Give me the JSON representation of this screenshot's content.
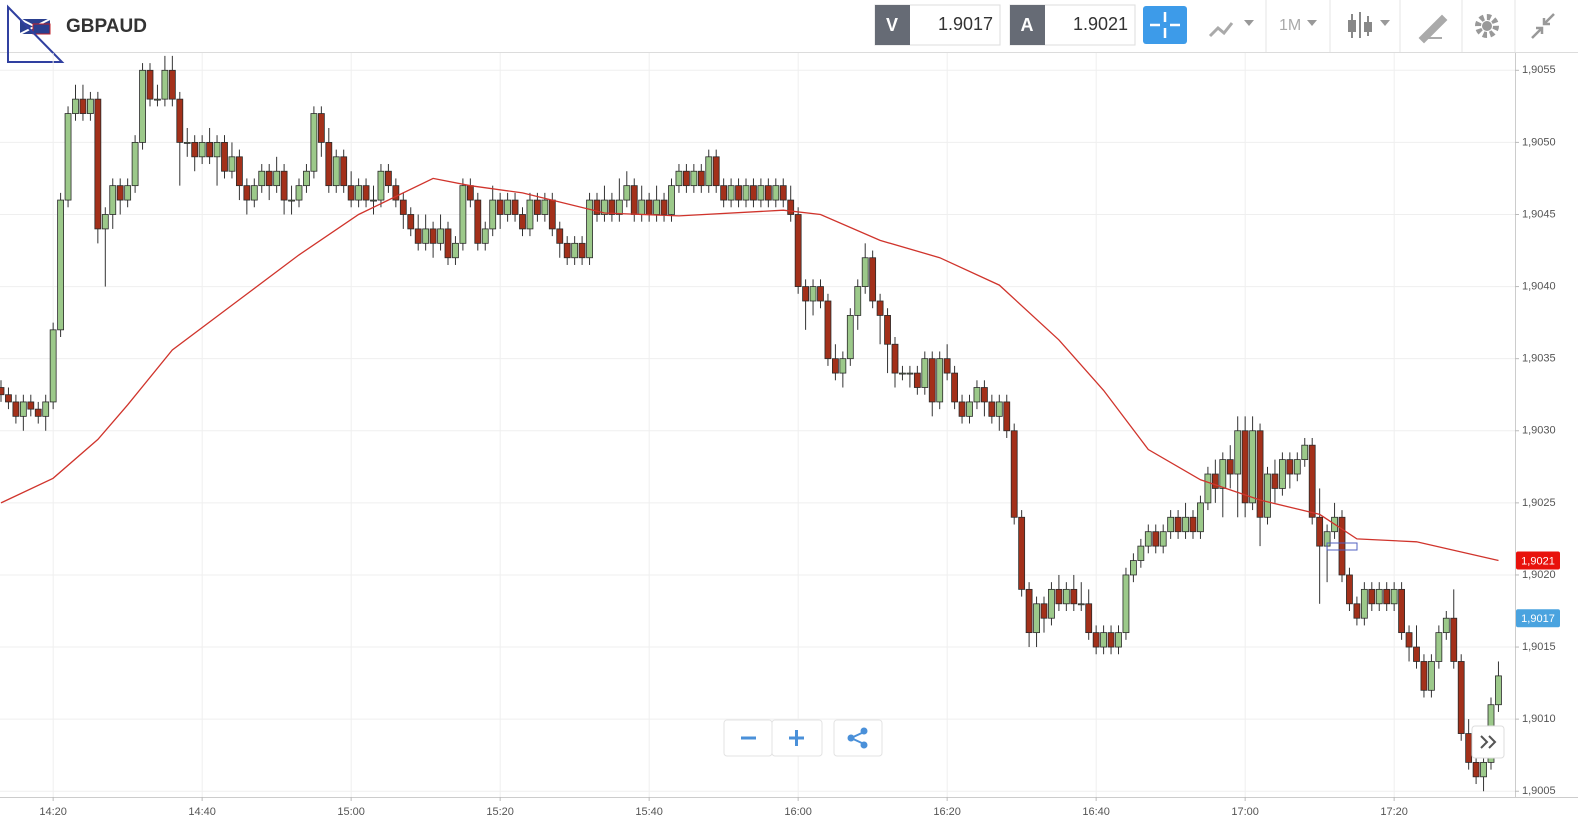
{
  "header": {
    "symbol": "GBPAUD",
    "bid_label": "V",
    "bid": "1.9017",
    "ask_label": "A",
    "ask": "1.9021",
    "timeframe": "1M"
  },
  "chart_data": {
    "type": "candlestick",
    "up_color": "#9cc98a",
    "down_color": "#a3301a",
    "categories": [
      "14:13",
      "14:14",
      "14:15",
      "14:16",
      "14:17",
      "14:18",
      "14:19",
      "14:20",
      "14:21",
      "14:22",
      "14:23",
      "14:24",
      "14:25",
      "14:26",
      "14:27",
      "14:28",
      "14:29",
      "14:30",
      "14:31",
      "14:32",
      "14:33",
      "14:34",
      "14:35",
      "14:36",
      "14:37",
      "14:38",
      "14:39",
      "14:40",
      "14:41",
      "14:42",
      "14:43",
      "14:44",
      "14:45",
      "14:46",
      "14:47",
      "14:48",
      "14:49",
      "14:50",
      "14:51",
      "14:52",
      "14:53",
      "14:54",
      "14:55",
      "14:56",
      "14:57",
      "14:58",
      "14:59",
      "15:00",
      "15:01",
      "15:02",
      "15:03",
      "15:04",
      "15:05",
      "15:06",
      "15:07",
      "15:08",
      "15:09",
      "15:10",
      "15:11",
      "15:12",
      "15:13",
      "15:14",
      "15:15",
      "15:16",
      "15:17",
      "15:18",
      "15:19",
      "15:20",
      "15:21",
      "15:22",
      "15:23",
      "15:24",
      "15:25",
      "15:26",
      "15:27",
      "15:28",
      "15:29",
      "15:30",
      "15:31",
      "15:32",
      "15:33",
      "15:34",
      "15:35",
      "15:36",
      "15:37",
      "15:38",
      "15:39",
      "15:40",
      "15:41",
      "15:42",
      "15:43",
      "15:44",
      "15:45",
      "15:46",
      "15:47",
      "15:48",
      "15:49",
      "15:50",
      "15:51",
      "15:52",
      "15:53",
      "15:54",
      "15:55",
      "15:56",
      "15:57",
      "15:58",
      "15:59",
      "16:00",
      "16:01",
      "16:02",
      "16:03",
      "16:04",
      "16:05",
      "16:06",
      "16:07",
      "16:08",
      "16:09",
      "16:10",
      "16:11",
      "16:12",
      "16:13",
      "16:14",
      "16:15",
      "16:16",
      "16:17",
      "16:18",
      "16:19",
      "16:20",
      "16:21",
      "16:22",
      "16:23",
      "16:24",
      "16:25",
      "16:26",
      "16:27",
      "16:28",
      "16:29",
      "16:30",
      "16:31",
      "16:32",
      "16:33",
      "16:34",
      "16:35",
      "16:36",
      "16:37",
      "16:38",
      "16:39",
      "16:40",
      "16:41",
      "16:42",
      "16:43",
      "16:44",
      "16:45",
      "16:46",
      "16:47",
      "16:48",
      "16:49",
      "16:50",
      "16:51",
      "16:52",
      "16:53",
      "16:54",
      "16:55",
      "16:56",
      "16:57",
      "16:58",
      "16:59",
      "17:00",
      "17:01",
      "17:02",
      "17:03",
      "17:04",
      "17:05",
      "17:06",
      "17:07",
      "17:08",
      "17:09",
      "17:10",
      "17:11",
      "17:12",
      "17:13",
      "17:14",
      "17:15",
      "17:16",
      "17:17",
      "17:18",
      "17:19",
      "17:20",
      "17:21",
      "17:22",
      "17:23",
      "17:24",
      "17:25",
      "17:26",
      "17:27",
      "17:28",
      "17:29",
      "17:30",
      "17:31",
      "17:32",
      "17:33",
      "17:34"
    ],
    "open": [
      1.9033,
      1.90325,
      1.9032,
      1.9031,
      1.9032,
      1.90315,
      1.9031,
      1.9032,
      1.9037,
      1.9046,
      1.9052,
      1.9053,
      1.9052,
      1.9053,
      1.9044,
      1.9045,
      1.9047,
      1.9046,
      1.9047,
      1.905,
      1.9055,
      1.9053,
      1.9053,
      1.9055,
      1.9053,
      1.905,
      1.905,
      1.9049,
      1.905,
      1.9049,
      1.905,
      1.9048,
      1.9049,
      1.9047,
      1.9046,
      1.9047,
      1.9048,
      1.9047,
      1.9048,
      1.9046,
      1.9046,
      1.9047,
      1.9048,
      1.9052,
      1.905,
      1.9047,
      1.9049,
      1.9047,
      1.9046,
      1.9047,
      1.9046,
      1.9046,
      1.9048,
      1.9047,
      1.9046,
      1.9045,
      1.9044,
      1.9043,
      1.9044,
      1.9043,
      1.9044,
      1.9042,
      1.9043,
      1.9047,
      1.9046,
      1.9043,
      1.9044,
      1.9046,
      1.9045,
      1.9046,
      1.9045,
      1.9044,
      1.9046,
      1.9045,
      1.9046,
      1.9044,
      1.9043,
      1.9042,
      1.9043,
      1.9042,
      1.9046,
      1.9045,
      1.9046,
      1.9045,
      1.9046,
      1.9047,
      1.9045,
      1.9046,
      1.9045,
      1.9046,
      1.9045,
      1.9047,
      1.9048,
      1.9047,
      1.9048,
      1.9047,
      1.9049,
      1.9047,
      1.9046,
      1.9047,
      1.9046,
      1.9047,
      1.9046,
      1.9047,
      1.9046,
      1.9047,
      1.9046,
      1.9045,
      1.904,
      1.9039,
      1.904,
      1.9039,
      1.9035,
      1.9034,
      1.9035,
      1.9038,
      1.904,
      1.9042,
      1.9039,
      1.9038,
      1.9036,
      1.9034,
      1.9034,
      1.9034,
      1.9033,
      1.9035,
      1.9032,
      1.9035,
      1.9034,
      1.9032,
      1.9031,
      1.9032,
      1.9033,
      1.9032,
      1.9031,
      1.9032,
      1.903,
      1.9024,
      1.9019,
      1.9016,
      1.9018,
      1.9017,
      1.9019,
      1.9018,
      1.9019,
      1.9018,
      1.9018,
      1.9016,
      1.9015,
      1.9016,
      1.9015,
      1.9016,
      1.902,
      1.9021,
      1.9022,
      1.9023,
      1.9022,
      1.9023,
      1.9024,
      1.9023,
      1.9024,
      1.9023,
      1.9025,
      1.9027,
      1.9026,
      1.9028,
      1.9027,
      1.903,
      1.9025,
      1.903,
      1.9024,
      1.9027,
      1.9026,
      1.9028,
      1.9027,
      1.9028,
      1.9029,
      1.9024,
      1.9022,
      1.9023,
      1.9024,
      1.902,
      1.9018,
      1.9017,
      1.9019,
      1.9018,
      1.9019,
      1.9018,
      1.9019,
      1.9016,
      1.9015,
      1.9014,
      1.9012,
      1.9014,
      1.9016,
      1.9017,
      1.9014,
      1.9009,
      1.9007,
      1.9006,
      1.9007,
      1.9011
    ],
    "high": [
      1.90335,
      1.9033,
      1.90325,
      1.90325,
      1.90325,
      1.9032,
      1.90325,
      1.90375,
      1.90465,
      1.90525,
      1.9054,
      1.9054,
      1.90535,
      1.90535,
      1.90455,
      1.90475,
      1.90475,
      1.90475,
      1.90505,
      1.90555,
      1.90555,
      1.9054,
      1.9056,
      1.9056,
      1.90535,
      1.9051,
      1.90505,
      1.90505,
      1.9051,
      1.90505,
      1.90505,
      1.905,
      1.90495,
      1.90475,
      1.90475,
      1.90485,
      1.90485,
      1.9049,
      1.90485,
      1.9047,
      1.90475,
      1.90485,
      1.90525,
      1.90525,
      1.9051,
      1.90495,
      1.90495,
      1.9048,
      1.90475,
      1.90475,
      1.9047,
      1.90485,
      1.90485,
      1.90475,
      1.90465,
      1.90455,
      1.9045,
      1.9045,
      1.90445,
      1.9045,
      1.90445,
      1.90435,
      1.90475,
      1.90475,
      1.90465,
      1.90445,
      1.9047,
      1.90465,
      1.90465,
      1.90465,
      1.90455,
      1.90465,
      1.90465,
      1.90465,
      1.90465,
      1.90445,
      1.90435,
      1.90435,
      1.90435,
      1.90465,
      1.90465,
      1.9047,
      1.90465,
      1.90475,
      1.9048,
      1.90475,
      1.9047,
      1.90465,
      1.9047,
      1.90465,
      1.90475,
      1.90485,
      1.90485,
      1.90485,
      1.90485,
      1.90495,
      1.90495,
      1.90475,
      1.90475,
      1.90475,
      1.90475,
      1.90475,
      1.90475,
      1.90475,
      1.90475,
      1.90475,
      1.9047,
      1.90455,
      1.90405,
      1.90405,
      1.90405,
      1.90395,
      1.9036,
      1.90355,
      1.90385,
      1.90405,
      1.9043,
      1.90425,
      1.90395,
      1.90385,
      1.90365,
      1.90345,
      1.90345,
      1.90345,
      1.90355,
      1.90355,
      1.90355,
      1.9036,
      1.90345,
      1.90325,
      1.90325,
      1.90335,
      1.90335,
      1.90325,
      1.90325,
      1.90325,
      1.90305,
      1.90245,
      1.90195,
      1.90185,
      1.90185,
      1.90195,
      1.902,
      1.90195,
      1.902,
      1.90195,
      1.9019,
      1.90165,
      1.90165,
      1.90165,
      1.90165,
      1.90205,
      1.90215,
      1.90225,
      1.90235,
      1.90235,
      1.90235,
      1.90245,
      1.90245,
      1.9025,
      1.90245,
      1.90255,
      1.90275,
      1.9028,
      1.90285,
      1.9029,
      1.9031,
      1.9031,
      1.9031,
      1.90305,
      1.90275,
      1.9028,
      1.90285,
      1.90285,
      1.90285,
      1.90295,
      1.90295,
      1.9026,
      1.90235,
      1.9025,
      1.90245,
      1.90205,
      1.90185,
      1.90195,
      1.90195,
      1.90195,
      1.90195,
      1.90195,
      1.90195,
      1.90165,
      1.90165,
      1.90145,
      1.90145,
      1.90165,
      1.90175,
      1.9019,
      1.90145,
      1.901,
      1.9009,
      1.90075,
      1.90115,
      1.9014
    ],
    "low": [
      1.9032,
      1.90315,
      1.90305,
      1.903,
      1.9031,
      1.90305,
      1.903,
      1.90315,
      1.90365,
      1.90455,
      1.90515,
      1.90515,
      1.90515,
      1.9043,
      1.904,
      1.9044,
      1.9045,
      1.90455,
      1.90465,
      1.90495,
      1.90525,
      1.90525,
      1.90525,
      1.90525,
      1.9047,
      1.9049,
      1.9048,
      1.90485,
      1.90485,
      1.9047,
      1.90475,
      1.90475,
      1.9046,
      1.9045,
      1.90455,
      1.90465,
      1.9046,
      1.90465,
      1.9045,
      1.9045,
      1.90455,
      1.90465,
      1.90475,
      1.9049,
      1.90465,
      1.90465,
      1.90465,
      1.90455,
      1.90455,
      1.90455,
      1.9045,
      1.90455,
      1.90465,
      1.90455,
      1.9044,
      1.90435,
      1.90425,
      1.90425,
      1.9042,
      1.90425,
      1.90415,
      1.90415,
      1.90425,
      1.90455,
      1.90425,
      1.90425,
      1.90435,
      1.9044,
      1.90445,
      1.90445,
      1.90435,
      1.90435,
      1.90445,
      1.90445,
      1.90435,
      1.9042,
      1.90415,
      1.90415,
      1.90415,
      1.90415,
      1.90445,
      1.90445,
      1.90445,
      1.90445,
      1.90455,
      1.90445,
      1.90445,
      1.90445,
      1.90445,
      1.90445,
      1.90445,
      1.90465,
      1.90465,
      1.90465,
      1.90465,
      1.90465,
      1.90465,
      1.90455,
      1.90455,
      1.90455,
      1.90455,
      1.90455,
      1.90455,
      1.90455,
      1.90455,
      1.90455,
      1.90445,
      1.90395,
      1.9037,
      1.9038,
      1.90385,
      1.90345,
      1.90335,
      1.9033,
      1.90345,
      1.9037,
      1.90395,
      1.90385,
      1.9036,
      1.9034,
      1.9033,
      1.90335,
      1.9033,
      1.90325,
      1.90325,
      1.9031,
      1.90315,
      1.90335,
      1.90315,
      1.90305,
      1.90305,
      1.90315,
      1.9031,
      1.90305,
      1.903,
      1.90295,
      1.90235,
      1.90185,
      1.9015,
      1.9015,
      1.9016,
      1.90165,
      1.90175,
      1.90175,
      1.90175,
      1.90175,
      1.90155,
      1.90145,
      1.90145,
      1.90145,
      1.90145,
      1.90155,
      1.90195,
      1.90205,
      1.90215,
      1.90215,
      1.90215,
      1.90225,
      1.90225,
      1.90225,
      1.90225,
      1.90225,
      1.90245,
      1.9025,
      1.9024,
      1.9026,
      1.9024,
      1.9024,
      1.90245,
      1.9022,
      1.90235,
      1.9025,
      1.90255,
      1.9026,
      1.90265,
      1.90275,
      1.90235,
      1.9018,
      1.90195,
      1.90225,
      1.90195,
      1.90175,
      1.90165,
      1.90165,
      1.90175,
      1.90175,
      1.90175,
      1.90175,
      1.90155,
      1.9014,
      1.90135,
      1.90115,
      1.90115,
      1.90135,
      1.90155,
      1.90135,
      1.90085,
      1.90065,
      1.90055,
      1.9005,
      1.90065,
      1.90105
    ],
    "close": [
      1.90325,
      1.9032,
      1.9031,
      1.9032,
      1.90315,
      1.9031,
      1.9032,
      1.9037,
      1.9046,
      1.9052,
      1.9053,
      1.9052,
      1.9053,
      1.9044,
      1.9045,
      1.9047,
      1.9046,
      1.9047,
      1.905,
      1.9055,
      1.9053,
      1.9053,
      1.9055,
      1.9053,
      1.905,
      1.905,
      1.9049,
      1.905,
      1.9049,
      1.905,
      1.9048,
      1.9049,
      1.9047,
      1.9046,
      1.9047,
      1.9048,
      1.9047,
      1.9048,
      1.9046,
      1.9046,
      1.9047,
      1.9048,
      1.9052,
      1.905,
      1.9047,
      1.9049,
      1.9047,
      1.9046,
      1.9047,
      1.9046,
      1.9046,
      1.9048,
      1.9047,
      1.9046,
      1.9045,
      1.9044,
      1.9043,
      1.9044,
      1.9043,
      1.9044,
      1.9042,
      1.9043,
      1.9047,
      1.9046,
      1.9043,
      1.9044,
      1.9046,
      1.9045,
      1.9046,
      1.9045,
      1.9044,
      1.9046,
      1.9045,
      1.9046,
      1.9044,
      1.9043,
      1.9042,
      1.9043,
      1.9042,
      1.9046,
      1.9045,
      1.9046,
      1.9045,
      1.9046,
      1.9047,
      1.9045,
      1.9046,
      1.9045,
      1.9046,
      1.9045,
      1.9047,
      1.9048,
      1.9047,
      1.9048,
      1.9047,
      1.9049,
      1.9047,
      1.9046,
      1.9047,
      1.9046,
      1.9047,
      1.9046,
      1.9047,
      1.9046,
      1.9047,
      1.9046,
      1.9045,
      1.904,
      1.9039,
      1.904,
      1.9039,
      1.9035,
      1.9034,
      1.9035,
      1.9038,
      1.904,
      1.9042,
      1.9039,
      1.9038,
      1.9036,
      1.9034,
      1.9034,
      1.9034,
      1.9033,
      1.9035,
      1.9032,
      1.9035,
      1.9034,
      1.9032,
      1.9031,
      1.9032,
      1.9033,
      1.9032,
      1.9031,
      1.9032,
      1.903,
      1.9024,
      1.9019,
      1.9016,
      1.9018,
      1.9017,
      1.9019,
      1.9018,
      1.9019,
      1.9018,
      1.9018,
      1.9016,
      1.9015,
      1.9016,
      1.9015,
      1.9016,
      1.902,
      1.9021,
      1.9022,
      1.9023,
      1.9022,
      1.9023,
      1.9024,
      1.9023,
      1.9024,
      1.9023,
      1.9025,
      1.9027,
      1.9026,
      1.9028,
      1.9027,
      1.903,
      1.9025,
      1.903,
      1.9024,
      1.9027,
      1.9026,
      1.9028,
      1.9027,
      1.9028,
      1.9029,
      1.9024,
      1.9022,
      1.9023,
      1.9024,
      1.902,
      1.9018,
      1.9017,
      1.9019,
      1.9018,
      1.9019,
      1.9018,
      1.9019,
      1.9016,
      1.9015,
      1.9014,
      1.9012,
      1.9014,
      1.9016,
      1.9017,
      1.9014,
      1.9009,
      1.9007,
      1.9006,
      1.9007,
      1.9011,
      1.9013
    ],
    "ma": {
      "color": "#d0342c",
      "x": [
        "14:13",
        "14:20",
        "14:26",
        "14:30",
        "14:36",
        "14:45",
        "14:53",
        "15:01",
        "15:11",
        "15:16",
        "15:23",
        "15:34",
        "15:44",
        "15:58",
        "16:03",
        "16:11",
        "16:19",
        "16:27",
        "16:35",
        "16:41",
        "16:47",
        "16:54",
        "17:02",
        "17:10",
        "17:15",
        "17:23",
        "17:34"
      ],
      "values": [
        1.9025,
        1.90267,
        1.90294,
        1.90318,
        1.90356,
        1.90391,
        1.90422,
        1.9045,
        1.90475,
        1.9047,
        1.90465,
        1.90451,
        1.90449,
        1.90453,
        1.9045,
        1.90432,
        1.9042,
        1.90401,
        1.90363,
        1.90328,
        1.90287,
        1.90266,
        1.90252,
        1.90242,
        1.90225,
        1.90223,
        1.9021
      ]
    },
    "ylim": [
      1.90046,
      1.90562
    ],
    "yticks": [
      {
        "value": 1.9005,
        "label": "1,9005"
      },
      {
        "value": 1.901,
        "label": "1,9010"
      },
      {
        "value": 1.9015,
        "label": "1,9015"
      },
      {
        "value": 1.902,
        "label": "1,9020"
      },
      {
        "value": 1.9025,
        "label": "1,9025"
      },
      {
        "value": 1.903,
        "label": "1,9030"
      },
      {
        "value": 1.9035,
        "label": "1,9035"
      },
      {
        "value": 1.904,
        "label": "1,9040"
      },
      {
        "value": 1.9045,
        "label": "1,9045"
      },
      {
        "value": 1.905,
        "label": "1,9050"
      },
      {
        "value": 1.9055,
        "label": "1,9055"
      }
    ],
    "xticks": [
      "14:20",
      "14:40",
      "15:00",
      "15:20",
      "15:40",
      "16:00",
      "16:20",
      "16:40",
      "17:00",
      "17:20"
    ],
    "grid": true,
    "price_tags": [
      {
        "value": 1.9021,
        "label": "1,9021",
        "color": "#e8120c"
      },
      {
        "value": 1.9017,
        "label": "1,9017",
        "color": "#4aa3df"
      }
    ]
  }
}
